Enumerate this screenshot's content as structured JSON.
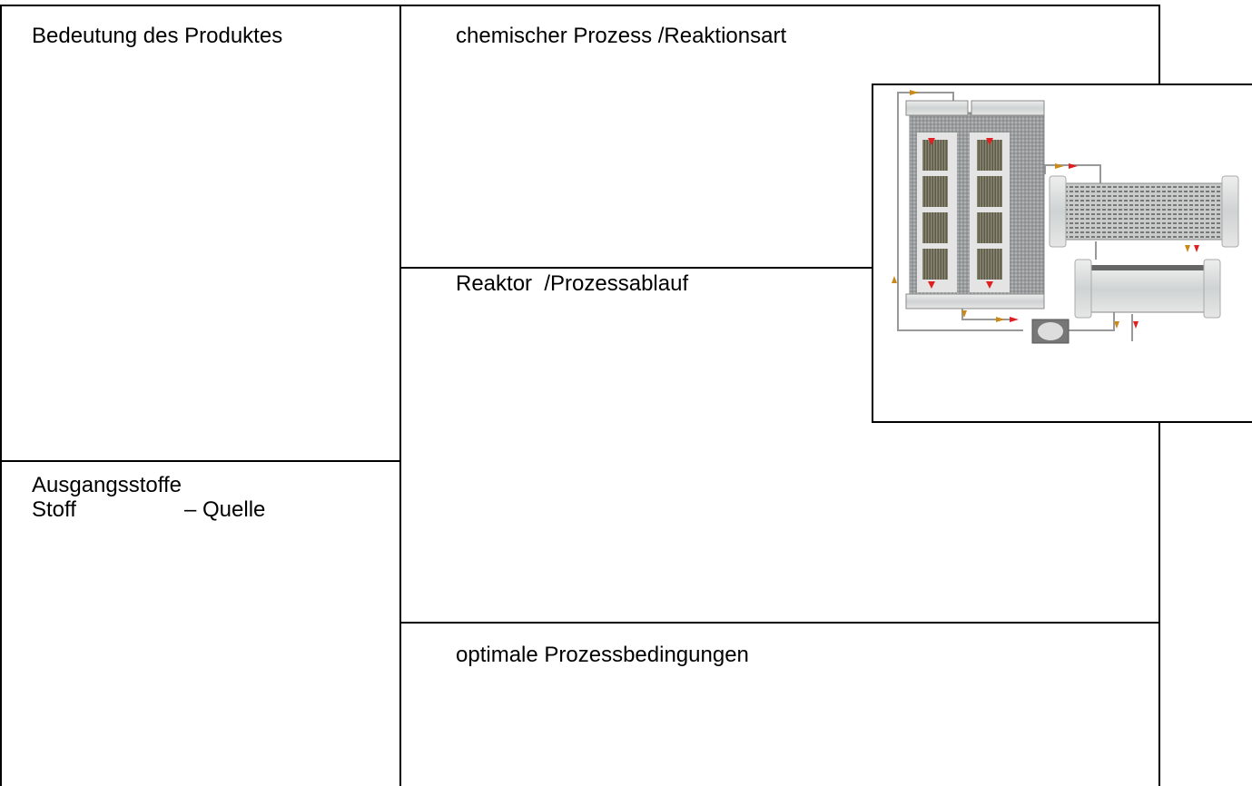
{
  "table": {
    "cells": [
      {
        "title": "Bedeutung des Produktes"
      },
      {
        "title": "chemischer Prozess /Reaktionsart"
      },
      {
        "title": "Reaktor  /Prozessablauf"
      },
      {
        "title": "Ausgangsstoffe",
        "columns": [
          "Stoff",
          "– Quelle"
        ]
      },
      {
        "title": "optimale Prozessbedingungen"
      }
    ]
  }
}
